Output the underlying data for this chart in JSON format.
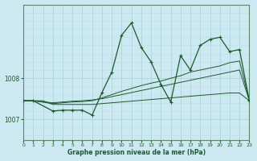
{
  "bg_color": "#cce8f0",
  "grid_color_major": "#aaccda",
  "grid_color_minor": "#bbdde8",
  "line_color": "#1a5c28",
  "xlabel": "Graphe pression niveau de la mer (hPa)",
  "xlim": [
    0,
    23
  ],
  "ylim": [
    1006.5,
    1009.8
  ],
  "yticks": [
    1007,
    1008
  ],
  "xticks": [
    0,
    1,
    2,
    3,
    4,
    5,
    6,
    7,
    8,
    9,
    10,
    11,
    12,
    13,
    14,
    15,
    16,
    17,
    18,
    19,
    20,
    21,
    22,
    23
  ],
  "s1_x": [
    0,
    1,
    3,
    4,
    5,
    6,
    7,
    8,
    9,
    10,
    11,
    12,
    13,
    14,
    15,
    16,
    17,
    18,
    19,
    20,
    21,
    22,
    23
  ],
  "s1_y": [
    1007.45,
    1007.45,
    1007.2,
    1007.22,
    1007.22,
    1007.22,
    1007.1,
    1007.65,
    1008.15,
    1009.05,
    1009.35,
    1008.75,
    1008.4,
    1007.85,
    1007.42,
    1008.55,
    1008.2,
    1008.8,
    1008.95,
    1009.0,
    1008.65,
    1008.7,
    1007.45
  ],
  "s2_x": [
    0,
    1,
    3,
    4,
    5,
    6,
    7,
    8,
    9,
    10,
    11,
    12,
    13,
    14,
    15,
    16,
    17,
    18,
    19,
    20,
    21,
    22,
    23
  ],
  "s2_y": [
    1007.45,
    1007.45,
    1007.38,
    1007.4,
    1007.42,
    1007.43,
    1007.45,
    1007.52,
    1007.6,
    1007.68,
    1007.75,
    1007.82,
    1007.88,
    1007.93,
    1008.0,
    1008.06,
    1008.15,
    1008.2,
    1008.25,
    1008.3,
    1008.38,
    1008.42,
    1007.45
  ],
  "s3_x": [
    0,
    1,
    2,
    3,
    4,
    5,
    6,
    7,
    8,
    9,
    10,
    11,
    12,
    13,
    14,
    15,
    16,
    17,
    18,
    19,
    20,
    21,
    22,
    23
  ],
  "s3_y": [
    1007.45,
    1007.45,
    1007.45,
    1007.36,
    1007.36,
    1007.36,
    1007.36,
    1007.36,
    1007.38,
    1007.4,
    1007.42,
    1007.44,
    1007.46,
    1007.48,
    1007.5,
    1007.52,
    1007.54,
    1007.56,
    1007.58,
    1007.6,
    1007.62,
    1007.64,
    1007.64,
    1007.45
  ],
  "s4_x": [
    0,
    1,
    3,
    4,
    5,
    6,
    7,
    8,
    9,
    10,
    11,
    12,
    13,
    14,
    15,
    16,
    17,
    18,
    19,
    20,
    21,
    22,
    23
  ],
  "s4_y": [
    1007.45,
    1007.45,
    1007.4,
    1007.42,
    1007.44,
    1007.45,
    1007.47,
    1007.5,
    1007.55,
    1007.6,
    1007.65,
    1007.7,
    1007.75,
    1007.8,
    1007.85,
    1007.9,
    1007.95,
    1008.0,
    1008.05,
    1008.1,
    1008.15,
    1008.2,
    1007.45
  ]
}
